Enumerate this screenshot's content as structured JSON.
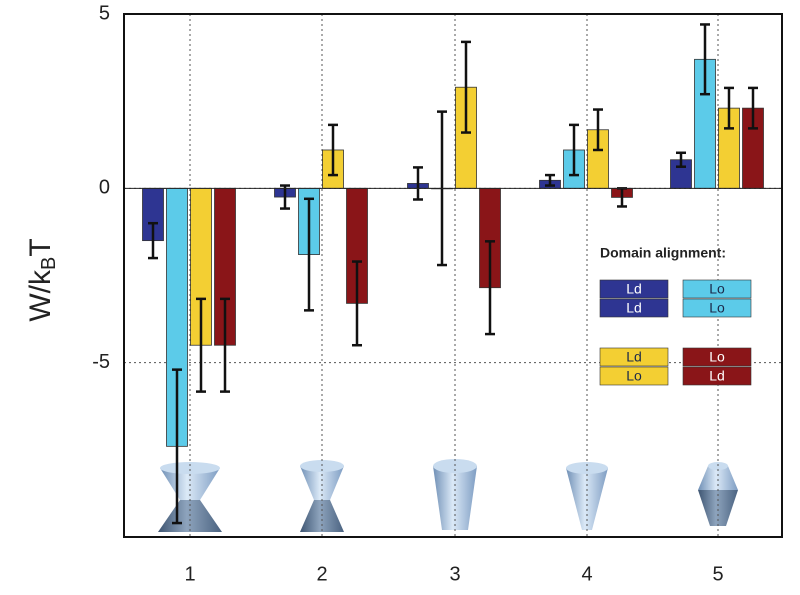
{
  "chart_data": {
    "type": "bar",
    "ylabel": [
      "W/k",
      "B",
      "T"
    ],
    "categories": [
      "1",
      "2",
      "3",
      "4",
      "5"
    ],
    "ylim": [
      -10,
      5
    ],
    "yticks": [
      -5,
      0,
      5
    ],
    "grid": true,
    "legend_title": "Domain alignment:",
    "series": [
      {
        "labels": [
          "Ld",
          "Ld"
        ],
        "color": "#2e3592",
        "text_color": "#ffffff",
        "values": [
          -1.5,
          -0.25,
          0.14,
          0.23,
          0.82
        ],
        "errors": [
          0.5,
          0.33,
          0.46,
          0.15,
          0.2
        ]
      },
      {
        "labels": [
          "Lo",
          "Lo"
        ],
        "color": "#5ccbe9",
        "text_color": "#1b2a4a",
        "values": [
          -7.4,
          -1.9,
          0,
          1.1,
          3.7
        ],
        "errors": [
          2.2,
          1.6,
          2.2,
          0.72,
          1.0
        ]
      },
      {
        "labels": [
          "Ld",
          "Lo"
        ],
        "color": "#f3cf33",
        "text_color": "#1b2a4a",
        "values": [
          -4.5,
          1.1,
          2.9,
          1.68,
          2.3
        ],
        "errors": [
          1.33,
          0.72,
          1.3,
          0.58,
          0.58
        ]
      },
      {
        "labels": [
          "Lo",
          "Ld"
        ],
        "color": "#8a1518",
        "text_color": "#ffffff",
        "values": [
          -4.5,
          -3.3,
          -2.85,
          -0.26,
          2.3
        ],
        "errors": [
          1.33,
          1.2,
          1.33,
          0.26,
          0.58
        ]
      }
    ]
  }
}
